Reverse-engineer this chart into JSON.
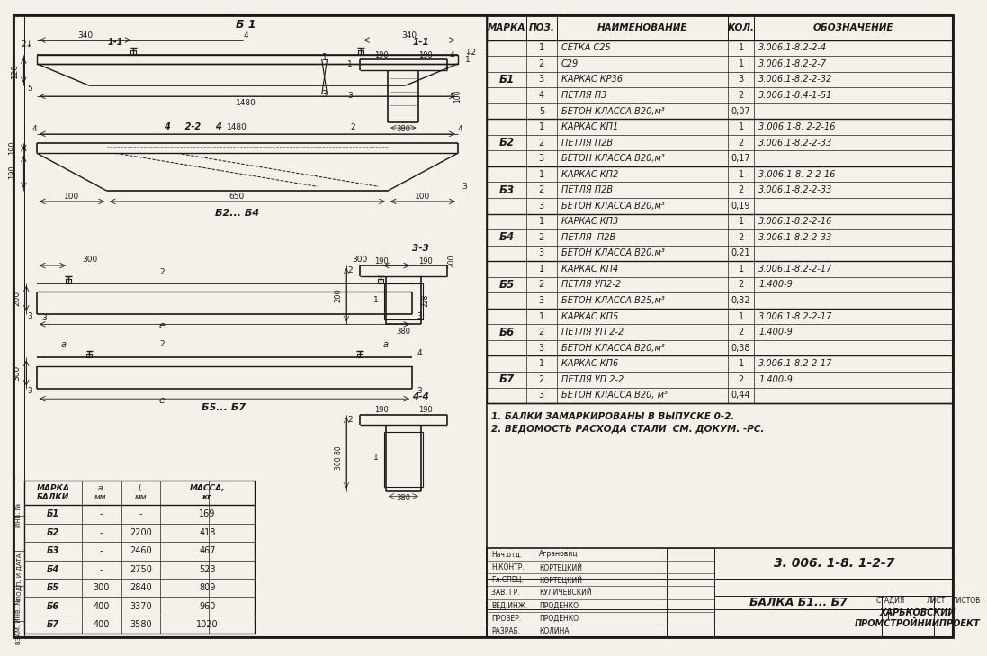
{
  "bg_color": "#f5f0e8",
  "line_color": "#1a1a1a",
  "title": "3. 006. 1-8. 1-2-7",
  "subtitle": "БАЛКА Б1... Б7",
  "company": "ХАРЬКОВСКИЙ\nПРОМСТРОЙНИИПРОЕКТ",
  "notes": [
    "1. БАЛКИ ЗАМАРКИРОВАНЫ В ВЫПУСКЕ 0-2.",
    "2. ВЕДОМОСТЬ РАСХОДА СТАЛИ  СМ. ДОКУМ. -РС."
  ],
  "table_headers": [
    "МАРКА",
    "ПОЗ.",
    "НАИМЕНОВАНИЕ",
    "КОЛ.",
    "ОБОЗНАЧЕНИЕ"
  ],
  "table_data": [
    [
      "Б1",
      "1",
      "СЕТКА С25",
      "1",
      "3.006.1-8.2-2-4"
    ],
    [
      "Б1",
      "2",
      "С29",
      "1",
      "3.006.1-8.2-2-7"
    ],
    [
      "Б1",
      "3",
      "КАРКАС КР36",
      "3",
      "3.006.1-8.2-2-32"
    ],
    [
      "Б1",
      "4",
      "ПЕТЛЯ П3",
      "2",
      "3.006.1-8.4-1-51"
    ],
    [
      "Б1",
      "5",
      "БЕТОН КЛАССА В20,м³",
      "0,07",
      ""
    ],
    [
      "Б2",
      "1",
      "КАРКАС КП1",
      "1",
      "3.006.1-8. 2-2-16"
    ],
    [
      "Б2",
      "2",
      "ПЕТЛЯ П2В",
      "2",
      "3.006.1-8.2-2-33"
    ],
    [
      "Б2",
      "3",
      "БЕТОН КЛАССА В20,м³",
      "0,17",
      ""
    ],
    [
      "Б3",
      "1",
      "КАРКАС КП2",
      "1",
      "3.006.1-8. 2-2-16"
    ],
    [
      "Б3",
      "2",
      "ПЕТЛЯ П2В",
      "2",
      "3.006.1-8.2-2-33"
    ],
    [
      "Б3",
      "3",
      "БЕТОН КЛАССА В20,м³",
      "0,19",
      ""
    ],
    [
      "Б4",
      "1",
      "КАРКАС КП3",
      "1",
      "3.006.1-8.2-2-16"
    ],
    [
      "Б4",
      "2",
      "ПЕТЛЯ  П2В",
      "2",
      "3.006.1-8.2-2-33"
    ],
    [
      "Б4",
      "3",
      "БЕТОН КЛАССА В20,м³",
      "0,21",
      ""
    ],
    [
      "Б5",
      "1",
      "КАРКАС КП4",
      "1",
      "3.006.1-8.2-2-17"
    ],
    [
      "Б5",
      "2",
      "ПЕТЛЯ УП2-2",
      "2",
      "1.400-9"
    ],
    [
      "Б5",
      "3",
      "БЕТОН КЛАССА В25,м³",
      "0,32",
      ""
    ],
    [
      "Б6",
      "1",
      "КАРКАС КП5",
      "1",
      "3.006.1-8.2-2-17"
    ],
    [
      "Б6",
      "2",
      "ПЕТЛЯ УП 2-2",
      "2",
      "1.400-9"
    ],
    [
      "Б6",
      "3",
      "БЕТОН КЛАССА В20,м³",
      "0,38",
      ""
    ],
    [
      "Б7",
      "1",
      "КАРКАС КП6",
      "1",
      "3.006.1-8.2-2-17"
    ],
    [
      "Б7",
      "2",
      "ПЕТЛЯ УП 2-2",
      "2",
      "1.400-9"
    ],
    [
      "Б7",
      "3",
      "БЕТОН КЛАССА В20, м³",
      "0,44",
      ""
    ]
  ],
  "dim_table_headers": [
    "МАРКА\nБАЛКИ",
    "а,\nмм.",
    "l,\nмм",
    "МАССА,\nкг"
  ],
  "dim_table_data": [
    [
      "Б1",
      "-",
      "-",
      "169"
    ],
    [
      "Б2",
      "-",
      "2200",
      "418"
    ],
    [
      "Б3",
      "-",
      "2460",
      "467"
    ],
    [
      "Б4",
      "-",
      "2750",
      "523"
    ],
    [
      "Б5",
      "300",
      "2840",
      "809"
    ],
    [
      "Б6",
      "400",
      "3370",
      "960"
    ],
    [
      "Б7",
      "400",
      "3580",
      "1020"
    ]
  ],
  "stamp_left": [
    [
      "Нач.отд.",
      "Аграновиц"
    ],
    [
      "Н.КОНТР.",
      "КОРТЕЦКИЙ"
    ],
    [
      "Гл.СПЕЦ.",
      "КОРТЕЦКИЙ"
    ],
    [
      "ЗАВ. ГР.",
      "КУЛИЧЕВСКИЙ"
    ],
    [
      "ВЕД.ИНЖ.",
      "ПРОДЕНКО"
    ],
    [
      "ПРОВЕР.",
      "ПРОДЕНКО"
    ],
    [
      "РАЗРАБ.",
      "КОЛИНА"
    ]
  ]
}
